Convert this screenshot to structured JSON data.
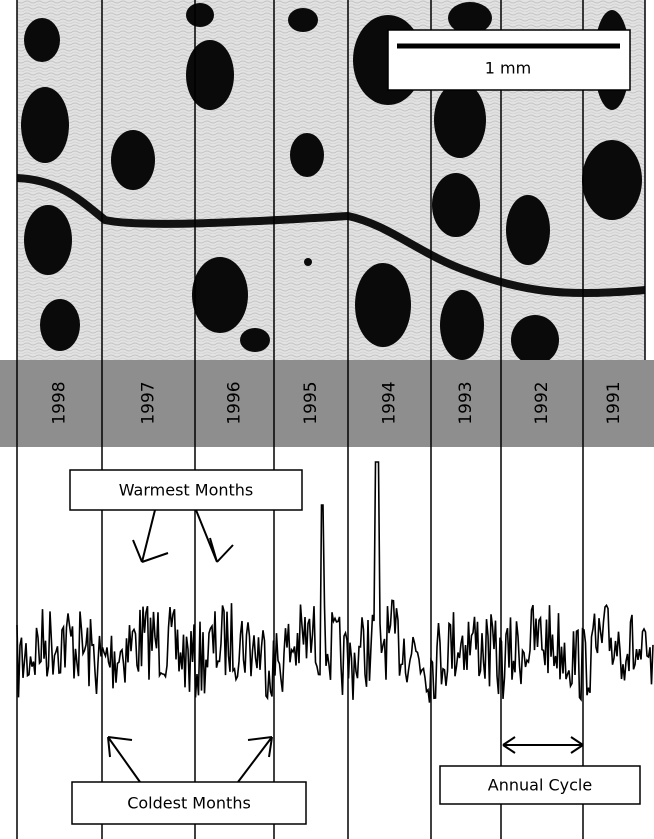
{
  "scale_bar": {
    "label": "1 mm"
  },
  "years": [
    "1998",
    "1997",
    "1996",
    "1995",
    "1994",
    "1993",
    "1992",
    "1991"
  ],
  "annotations": {
    "warmest": "Warmest Months",
    "coldest": "Coldest Months",
    "annual_cycle": "Annual Cycle"
  }
}
